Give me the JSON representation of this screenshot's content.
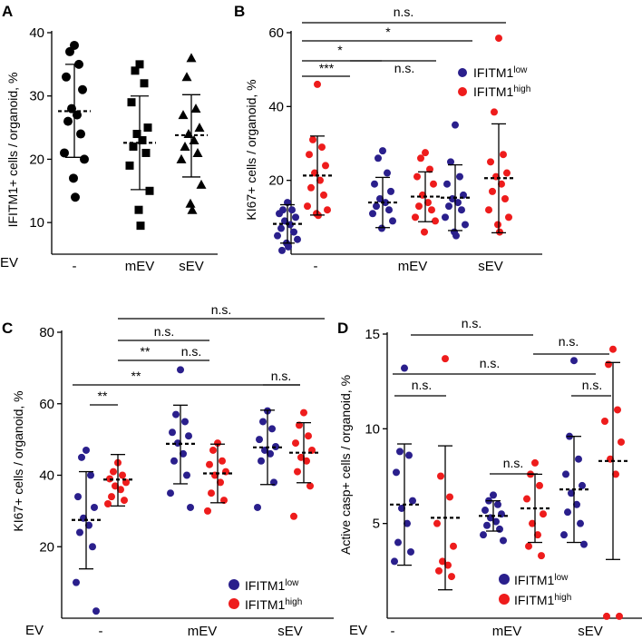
{
  "colors": {
    "low": "#2a1f8c",
    "high": "#ee1c1c",
    "ink": "#000000"
  },
  "legend": {
    "low": {
      "base": "IFITM1",
      "sup": "low"
    },
    "high": {
      "base": "IFITM1",
      "sup": "high"
    }
  },
  "chart_data": [
    {
      "panel": "A",
      "type": "scatter",
      "ylabel": "IFITM1+ cells / organoid, %",
      "xlabel_prefix": "EV",
      "categories": [
        "-",
        "mEV",
        "sEV"
      ],
      "ylim": [
        5,
        40
      ],
      "yticks": [
        10,
        20,
        30,
        40
      ],
      "markers": [
        "circle",
        "square",
        "triangle"
      ],
      "groups": [
        {
          "cat": "-",
          "mean": 27.6,
          "sd_low": 20.3,
          "sd_high": 35.0,
          "values": [
            38,
            37,
            35,
            33,
            31,
            28,
            27,
            26,
            24,
            21,
            20,
            17,
            14
          ]
        },
        {
          "cat": "mEV",
          "mean": 22.6,
          "sd_low": 15.2,
          "sd_high": 30.0,
          "values": [
            35,
            34,
            32,
            29,
            25,
            24,
            23,
            22,
            21,
            19,
            15,
            12,
            9.5
          ]
        },
        {
          "cat": "sEV",
          "mean": 23.8,
          "sd_low": 17.2,
          "sd_high": 30.2,
          "values": [
            36,
            33,
            28,
            27,
            25,
            24,
            23,
            22,
            21,
            20,
            16,
            13,
            12
          ]
        }
      ],
      "annotations": []
    },
    {
      "panel": "B",
      "type": "scatter",
      "ylabel": "KI67+ cells / organoid, %",
      "categories": [
        "-",
        "mEV",
        "sEV"
      ],
      "ylim": [
        0,
        60
      ],
      "yticks": [
        20,
        40,
        60
      ],
      "series": [
        {
          "name": "IFITM1 low",
          "key": "low",
          "groups": [
            {
              "cat": "-",
              "mean": 8.2,
              "sd_low": 3.0,
              "sd_high": 13.4,
              "values": [
                14,
                12,
                12,
                11,
                10,
                9,
                8,
                7,
                6,
                5,
                4,
                3,
                2,
                1
              ]
            },
            {
              "cat": "mEV",
              "mean": 14.0,
              "sd_low": 7.2,
              "sd_high": 20.8,
              "values": [
                28,
                26,
                22,
                19,
                17,
                15,
                14,
                13,
                12,
                11,
                9,
                7
              ]
            },
            {
              "cat": "sEV",
              "mean": 15.3,
              "sd_low": 6.4,
              "sd_high": 24.2,
              "values": [
                35,
                25,
                21,
                19,
                16,
                15,
                14,
                13,
                12,
                10,
                8,
                6,
                5
              ]
            }
          ]
        },
        {
          "name": "IFITM1 high",
          "key": "high",
          "groups": [
            {
              "cat": "-",
              "mean": 21.3,
              "sd_low": 10.6,
              "sd_high": 32.0,
              "values": [
                46,
                31,
                29,
                27,
                24,
                22,
                20,
                18,
                16,
                13,
                12,
                11,
                10.5
              ]
            },
            {
              "cat": "mEV",
              "mean": 15.6,
              "sd_low": 8.8,
              "sd_high": 22.3,
              "values": [
                27.5,
                26,
                23,
                21,
                19,
                16,
                14,
                13,
                12,
                10,
                9,
                6
              ]
            },
            {
              "cat": "sEV",
              "mean": 20.6,
              "sd_low": 5.8,
              "sd_high": 35.3,
              "values": [
                58.5,
                38.5,
                27,
                25,
                22,
                21,
                19,
                17,
                15,
                12,
                10,
                8,
                6
              ]
            }
          ]
        }
      ],
      "annotations": [
        {
          "label": "n.s.",
          "level": 3
        },
        {
          "label": "*",
          "level": 2
        },
        {
          "label": "*",
          "level": 1
        },
        {
          "label": "n.s.",
          "level": 0
        },
        {
          "label": "***",
          "level": 0
        }
      ]
    },
    {
      "panel": "C",
      "type": "scatter",
      "ylabel": "KI67+ cells / organoid, %",
      "xlabel_prefix": "EV",
      "categories": [
        "-",
        "mEV",
        "sEV"
      ],
      "ylim": [
        0,
        80
      ],
      "yticks": [
        20,
        40,
        60,
        80
      ],
      "series": [
        {
          "name": "IFITM1 low",
          "key": "low",
          "groups": [
            {
              "cat": "-",
              "mean": 27.5,
              "sd_low": 13.8,
              "sd_high": 41.0,
              "values": [
                47,
                45,
                40,
                34,
                31,
                28,
                26,
                24,
                20,
                10,
                2
              ]
            },
            {
              "cat": "mEV",
              "mean": 48.8,
              "sd_low": 37.6,
              "sd_high": 59.6,
              "values": [
                69.5,
                57,
                55,
                52,
                51,
                49,
                46,
                44,
                40,
                35,
                31
              ]
            },
            {
              "cat": "sEV",
              "mean": 47.8,
              "sd_low": 37.4,
              "sd_high": 58.2,
              "values": [
                58,
                55,
                53,
                50,
                48,
                47,
                46,
                44,
                38,
                31
              ]
            }
          ]
        },
        {
          "name": "IFITM1 high",
          "key": "high",
          "groups": [
            {
              "cat": "-",
              "mean": 38.8,
              "sd_low": 31.4,
              "sd_high": 45.8,
              "values": [
                43.5,
                41,
                40,
                39,
                38,
                37,
                36,
                34,
                33,
                32
              ]
            },
            {
              "cat": "mEV",
              "mean": 40.5,
              "sd_low": 32.3,
              "sd_high": 48.7,
              "values": [
                49,
                47,
                44,
                43,
                41,
                40,
                38,
                35,
                33,
                30
              ]
            },
            {
              "cat": "sEV",
              "mean": 46.3,
              "sd_low": 37.9,
              "sd_high": 54.7,
              "values": [
                57.5,
                54,
                51,
                49,
                47,
                45,
                44,
                41,
                37,
                28.5
              ]
            }
          ]
        }
      ],
      "annotations": [
        {
          "label": "n.s.",
          "level": 3
        },
        {
          "label": "n.s.",
          "level": 2
        },
        {
          "label": "n.s.",
          "level": 1
        },
        {
          "label": "**",
          "level": 1
        },
        {
          "label": "**",
          "level": 0
        },
        {
          "label": "**",
          "level": 0
        },
        {
          "label": "n.s.",
          "level": 0
        }
      ]
    },
    {
      "panel": "D",
      "type": "scatter",
      "ylabel": "Active casp+ cells / organoid, %",
      "xlabel_prefix": "EV",
      "categories": [
        "-",
        "mEV",
        "sEV"
      ],
      "ylim": [
        0,
        15
      ],
      "yticks": [
        5,
        10,
        15
      ],
      "series": [
        {
          "name": "IFITM1 low",
          "key": "low",
          "groups": [
            {
              "cat": "-",
              "mean": 6.0,
              "sd_low": 2.8,
              "sd_high": 9.2,
              "values": [
                13.2,
                8.8,
                8.6,
                7.7,
                6.2,
                5.8,
                5.0,
                4.0,
                3.5,
                3.0
              ]
            },
            {
              "cat": "mEV",
              "mean": 5.4,
              "sd_low": 4.6,
              "sd_high": 6.2,
              "values": [
                6.5,
                6.2,
                6.0,
                5.7,
                5.5,
                5.3,
                5.1,
                4.9,
                4.7,
                4.4,
                4.1
              ]
            },
            {
              "cat": "sEV",
              "mean": 6.8,
              "sd_low": 4.0,
              "sd_high": 9.6,
              "values": [
                13.6,
                9.6,
                8.4,
                7.6,
                7.0,
                6.6,
                6.0,
                5.6,
                5.0,
                4.4,
                3.9
              ]
            }
          ]
        },
        {
          "name": "IFITM1 high",
          "key": "high",
          "groups": [
            {
              "cat": "-",
              "mean": 5.3,
              "sd_low": 1.5,
              "sd_high": 9.1,
              "values": [
                13.7,
                7.5,
                6.4,
                5.0,
                3.8,
                3.0,
                2.8,
                2.5,
                2.2
              ]
            },
            {
              "cat": "mEV",
              "mean": 5.8,
              "sd_low": 4.0,
              "sd_high": 7.6,
              "values": [
                8.2,
                7.6,
                7.0,
                6.3,
                5.5,
                5.0,
                4.4,
                3.8,
                3.3
              ]
            },
            {
              "cat": "sEV",
              "mean": 8.3,
              "sd_low": 3.1,
              "sd_high": 13.5,
              "values": [
                14.2,
                13.4,
                11.0,
                10.4,
                9.3,
                8.4,
                7.6,
                0.1,
                0.1
              ]
            }
          ]
        }
      ],
      "annotations": [
        {
          "label": "n.s.",
          "level": 3
        },
        {
          "label": "n.s.",
          "level": 3
        },
        {
          "label": "n.s.",
          "level": 2
        },
        {
          "label": "n.s.",
          "level": 1
        },
        {
          "label": "n.s.",
          "level": 0
        },
        {
          "label": "n.s.",
          "level": 0
        }
      ]
    }
  ]
}
